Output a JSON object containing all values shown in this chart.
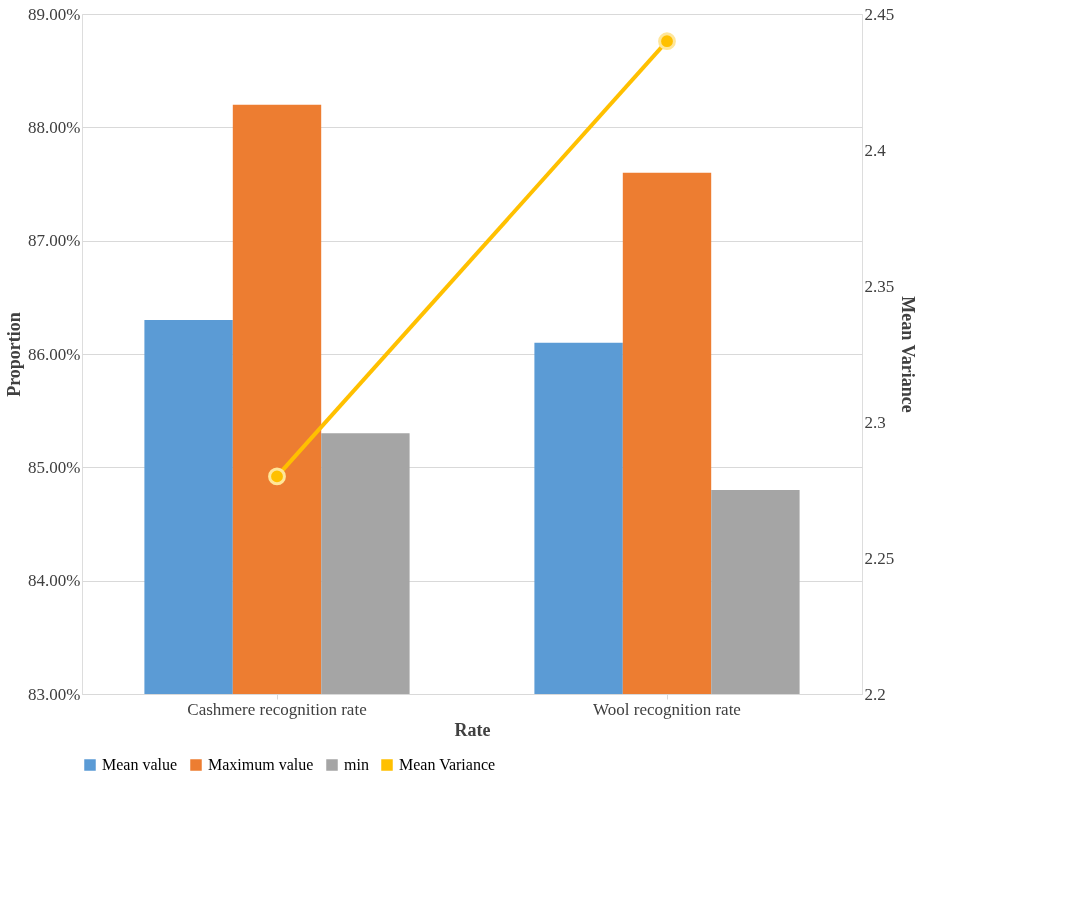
{
  "chart_data": {
    "type": "bar",
    "xlabel": "Rate",
    "ylabel": "Proportion",
    "y2label": "Mean Variance",
    "categories": [
      "Cashmere recognition rate",
      "Wool recognition rate"
    ],
    "series": [
      {
        "name": "Mean value",
        "color": "#5b9bd5",
        "values": [
          86.3,
          86.1
        ]
      },
      {
        "name": "Maximum value",
        "color": "#ed7d31",
        "values": [
          88.2,
          87.6
        ]
      },
      {
        "name": "min",
        "color": "#a5a5a5",
        "values": [
          85.3,
          84.8
        ]
      },
      {
        "name": "Mean Variance",
        "type": "line",
        "axis": "y2",
        "color": "#ffc000",
        "values": [
          2.28,
          2.44
        ]
      }
    ],
    "ylim": [
      83,
      89
    ],
    "yticks": [
      {
        "value": 83,
        "label": "83.00%"
      },
      {
        "value": 84,
        "label": "84.00%"
      },
      {
        "value": 85,
        "label": "85.00%"
      },
      {
        "value": 86,
        "label": "86.00%"
      },
      {
        "value": 87,
        "label": "87.00%"
      },
      {
        "value": 88,
        "label": "88.00%"
      },
      {
        "value": 89,
        "label": "89.00%"
      }
    ],
    "y2lim": [
      2.2,
      2.45
    ],
    "y2ticks": [
      2.2,
      2.25,
      2.3,
      2.35,
      2.4,
      2.45
    ],
    "grid": "y",
    "legend": "bottom",
    "marker": "circle"
  }
}
